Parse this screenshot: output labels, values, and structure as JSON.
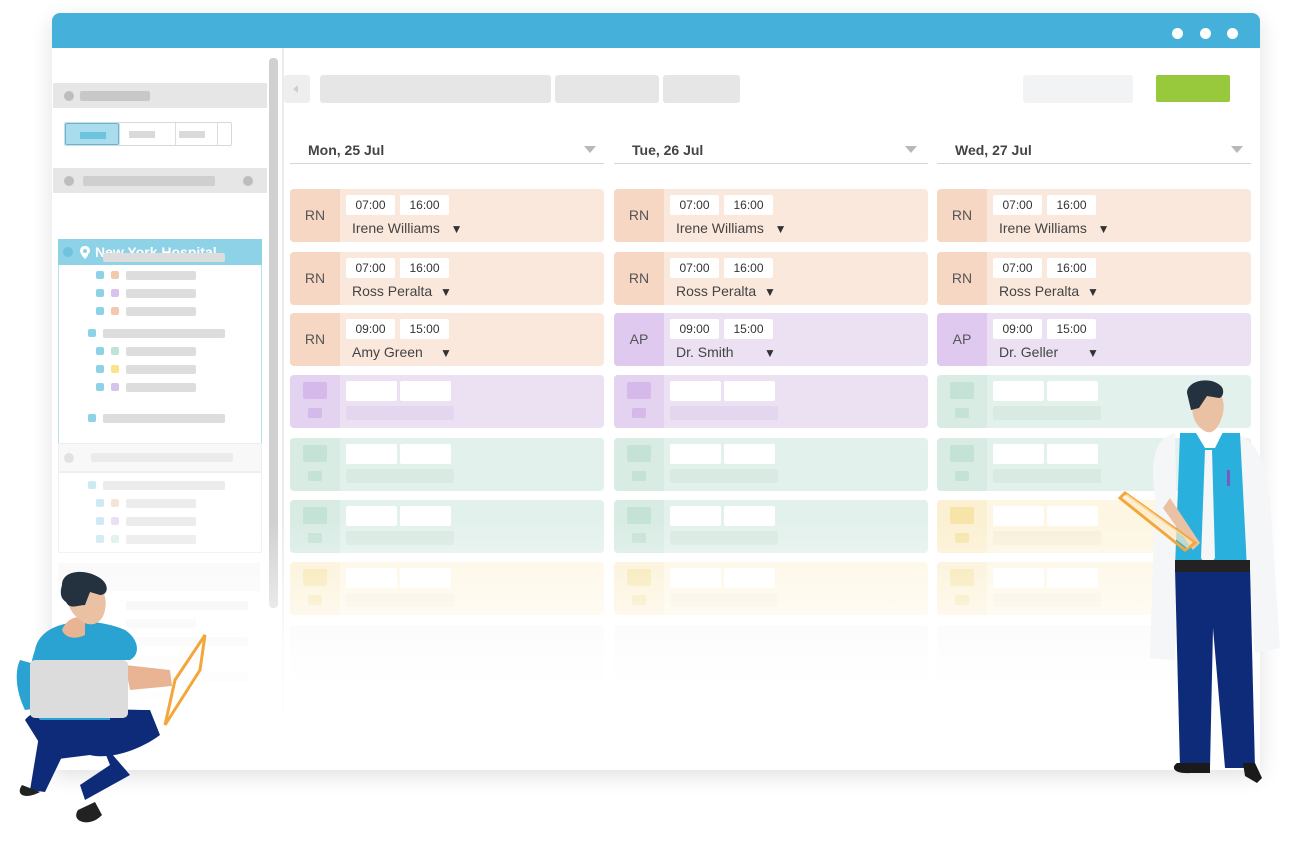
{
  "days": [
    {
      "label": "Mon, 25 Jul"
    },
    {
      "label": "Tue, 26 Jul"
    },
    {
      "label": "Wed, 27 Jul"
    }
  ],
  "sidebar": {
    "location_label": "New York Hospital"
  },
  "shifts": [
    [
      {
        "role": "RN",
        "start": "07:00",
        "end": "16:00",
        "name": "Irene Williams"
      },
      {
        "role": "RN",
        "start": "07:00",
        "end": "16:00",
        "name": "Ross Peralta"
      },
      {
        "role": "RN",
        "start": "09:00",
        "end": "15:00",
        "name": "Amy Green"
      }
    ],
    [
      {
        "role": "RN",
        "start": "07:00",
        "end": "16:00",
        "name": "Irene Williams"
      },
      {
        "role": "RN",
        "start": "07:00",
        "end": "16:00",
        "name": "Ross Peralta"
      },
      {
        "role": "AP",
        "start": "09:00",
        "end": "15:00",
        "name": "Dr. Smith"
      }
    ],
    [
      {
        "role": "RN",
        "start": "07:00",
        "end": "16:00",
        "name": "Irene Williams"
      },
      {
        "role": "RN",
        "start": "07:00",
        "end": "16:00",
        "name": "Ross Peralta"
      },
      {
        "role": "AP",
        "start": "09:00",
        "end": "15:00",
        "name": "Dr. Geller"
      }
    ]
  ],
  "colors": {
    "titlebar": "#45b0da",
    "rn_card": "#fbe8dc",
    "rn_role": "#f6d7c3",
    "ap_card": "#ece0f3",
    "ap_role": "#dfc9ee",
    "green_card": "#e3f1ec",
    "yellow_card": "#fdf6e2",
    "accent_button": "#98c93c",
    "selection": "#8ed2e8"
  },
  "icons": [
    "location-pin-icon",
    "dropdown-caret-icon",
    "window-dot-icon"
  ]
}
